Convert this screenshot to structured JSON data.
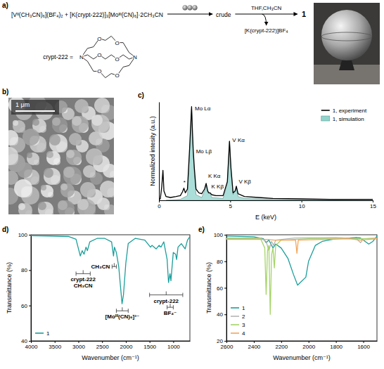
{
  "panel_labels": [
    "a)",
    "b)",
    "c)",
    "d)",
    "e)"
  ],
  "scheme": {
    "reactants": "[Vᴵᴵ(CH₃CN)₆](BF₄)₂ + [K(crypt-222)]₃[Moᴵᴵᴵ(CN)₆]·2CH₃CN",
    "intermediate": "crude",
    "conditions": "THF,CH₃CN",
    "byproduct": "[K(crypt-222)]BF₄",
    "product": "1",
    "crypt_label": "crypt-222 =",
    "crypt_atoms": [
      "N",
      "N",
      "O",
      "O",
      "O",
      "O",
      "O",
      "O"
    ]
  },
  "sem": {
    "scale_bar": "1 μm"
  },
  "chart_data": [
    {
      "type": "line",
      "xlabel": "E (keV)",
      "ylabel": "Normalized intesity (a.u.)",
      "xlim": [
        0,
        15
      ],
      "xticks": [
        0,
        5,
        10,
        15
      ],
      "ylim": [
        0,
        1.05
      ],
      "yticks": [],
      "tick_labels": "x",
      "legend": "upper right",
      "series": [
        {
          "name": "1, experiment",
          "type": "line",
          "color": "#000000",
          "x": [
            0,
            0.1,
            0.2,
            0.28,
            0.35,
            0.5,
            0.8,
            1.2,
            1.5,
            1.65,
            1.75,
            1.85,
            2.0,
            2.15,
            2.29,
            2.36,
            2.4,
            2.48,
            2.6,
            2.8,
            3.0,
            3.2,
            3.31,
            3.42,
            3.5,
            3.59,
            3.7,
            4.0,
            4.5,
            4.8,
            4.95,
            5.05,
            5.2,
            5.35,
            5.43,
            5.55,
            6,
            7,
            8,
            10,
            12,
            15
          ],
          "values": [
            0,
            0.02,
            0.15,
            0.32,
            0.1,
            0.04,
            0.03,
            0.04,
            0.05,
            0.09,
            0.13,
            0.08,
            0.12,
            0.55,
            1.0,
            0.7,
            0.55,
            0.35,
            0.12,
            0.08,
            0.07,
            0.12,
            0.18,
            0.1,
            0.08,
            0.08,
            0.06,
            0.05,
            0.05,
            0.2,
            0.63,
            0.35,
            0.08,
            0.1,
            0.15,
            0.07,
            0.04,
            0.03,
            0.02,
            0.015,
            0.01,
            0.01
          ]
        },
        {
          "name": "1, simulation",
          "type": "area",
          "color": "#8fd3cc",
          "x": [
            0.5,
            1.5,
            2.0,
            2.15,
            2.29,
            2.36,
            2.4,
            2.48,
            2.6,
            3.0,
            3.2,
            3.31,
            3.42,
            3.59,
            3.7,
            4.5,
            4.8,
            4.95,
            5.05,
            5.2,
            5.43,
            5.55,
            6,
            8,
            15
          ],
          "values": [
            0,
            0.01,
            0.05,
            0.5,
            0.98,
            0.65,
            0.52,
            0.3,
            0.06,
            0.03,
            0.1,
            0.17,
            0.08,
            0.07,
            0.03,
            0.02,
            0.18,
            0.63,
            0.33,
            0.06,
            0.14,
            0.04,
            0.02,
            0.01,
            0
          ]
        }
      ],
      "annotations": [
        {
          "text": "*",
          "x": 1.62,
          "y": 0.17
        },
        {
          "text": "Mo Lα",
          "x": 2.42,
          "y": 0.96
        },
        {
          "text": "Mo Lβ",
          "x": 2.5,
          "y": 0.5
        },
        {
          "text": "K Kα",
          "x": 3.35,
          "y": 0.24
        },
        {
          "text": "K Kβ",
          "x": 3.58,
          "y": 0.13
        },
        {
          "text": "V Kα",
          "x": 5.05,
          "y": 0.62
        },
        {
          "text": "V Kβ",
          "x": 5.5,
          "y": 0.18
        }
      ]
    },
    {
      "type": "line",
      "xlabel": "Wavenumber (cm⁻¹)",
      "ylabel": "Transmittance (%)",
      "xlim": [
        4000,
        650
      ],
      "xticks": [
        4000,
        3500,
        3000,
        2500,
        2000,
        1500,
        1000
      ],
      "ylim": [
        40,
        100
      ],
      "yticks": [
        40,
        60,
        80,
        100
      ],
      "legend": "lower left",
      "series": [
        {
          "name": "1",
          "color": "#1b9e9a",
          "x": [
            4000,
            3600,
            3200,
            3050,
            2960,
            2920,
            2880,
            2840,
            2810,
            2760,
            2600,
            2450,
            2300,
            2260,
            2240,
            2200,
            2150,
            2110,
            2080,
            2050,
            2000,
            1950,
            1800,
            1600,
            1480,
            1450,
            1360,
            1300,
            1260,
            1200,
            1130,
            1100,
            1070,
            1050,
            1000,
            950,
            930,
            900,
            830,
            750,
            700,
            650
          ],
          "values": [
            99.5,
            99.3,
            99,
            97.5,
            88,
            91,
            89,
            93,
            91,
            96,
            98,
            98,
            96,
            88,
            93,
            90,
            82,
            70,
            61,
            66,
            84,
            95,
            98,
            97,
            93,
            94,
            92,
            94,
            93,
            96,
            86,
            73,
            78,
            74,
            90,
            89,
            86,
            93,
            95,
            92,
            97,
            99
          ]
        }
      ],
      "annotations": [
        {
          "text": [
            "crypt-222",
            "CH₃CN"
          ],
          "x_range": [
            3050,
            2750
          ],
          "y": 78
        },
        {
          "text": "CH₃CN",
          "x_range": [
            2290,
            2200
          ],
          "y": 82
        },
        {
          "text": "[Moᴵᴵᴵ(CN)₆]³⁻",
          "x_range": [
            2200,
            1950
          ],
          "y": 57
        },
        {
          "text": "crypt-222",
          "x_range": [
            1500,
            800
          ],
          "y": 66
        },
        {
          "text": "BF₄⁻",
          "x_range": [
            1130,
            1000
          ],
          "y": 59
        }
      ]
    },
    {
      "type": "line",
      "xlabel": "Wavenumber (cm⁻¹)",
      "ylabel": "Transmittance (%)",
      "xlim": [
        2600,
        1500
      ],
      "xticks": [
        2600,
        2400,
        2200,
        2000,
        1800,
        1600
      ],
      "ylim": [
        20,
        100
      ],
      "yticks": [
        20,
        40,
        60,
        80,
        100
      ],
      "legend": "lower left",
      "series": [
        {
          "name": "1",
          "color": "#1b9e9a",
          "x": [
            2600,
            2400,
            2330,
            2310,
            2290,
            2260,
            2240,
            2200,
            2150,
            2110,
            2080,
            2050,
            2020,
            2000,
            1950,
            1900,
            1800,
            1700,
            1650,
            1620,
            1560,
            1530,
            1500
          ],
          "values": [
            99,
            98.5,
            97,
            94,
            96,
            90,
            93,
            90,
            82,
            70,
            62,
            65,
            68,
            80,
            92,
            95,
            97,
            97.5,
            98,
            97.5,
            93,
            95,
            99
          ]
        },
        {
          "name": "2",
          "color": "#b5b5b5",
          "x": [
            2600,
            2350,
            2310,
            2290,
            2270,
            2255,
            2240,
            2150,
            2100,
            1800,
            1650,
            1620,
            1600,
            1500
          ],
          "values": [
            97.5,
            97.5,
            95,
            88,
            95,
            92,
            96,
            97,
            97.5,
            98,
            97,
            94,
            97,
            97.5
          ]
        },
        {
          "name": "3",
          "color": "#a6d46a",
          "x": [
            2600,
            2350,
            2320,
            2310,
            2300,
            2290,
            2280,
            2270,
            2260,
            2250,
            2240,
            2200,
            2000,
            1800,
            1500
          ],
          "values": [
            97,
            97,
            90,
            55,
            88,
            92,
            40,
            85,
            90,
            75,
            92,
            96,
            97,
            97,
            97
          ]
        },
        {
          "name": "4",
          "color": "#f2a65a",
          "x": [
            2600,
            2300,
            2250,
            2095,
            2085,
            2075,
            1700,
            1620,
            1500
          ],
          "values": [
            96.5,
            96.5,
            96,
            96,
            86,
            96,
            97,
            96,
            97
          ]
        }
      ]
    }
  ]
}
